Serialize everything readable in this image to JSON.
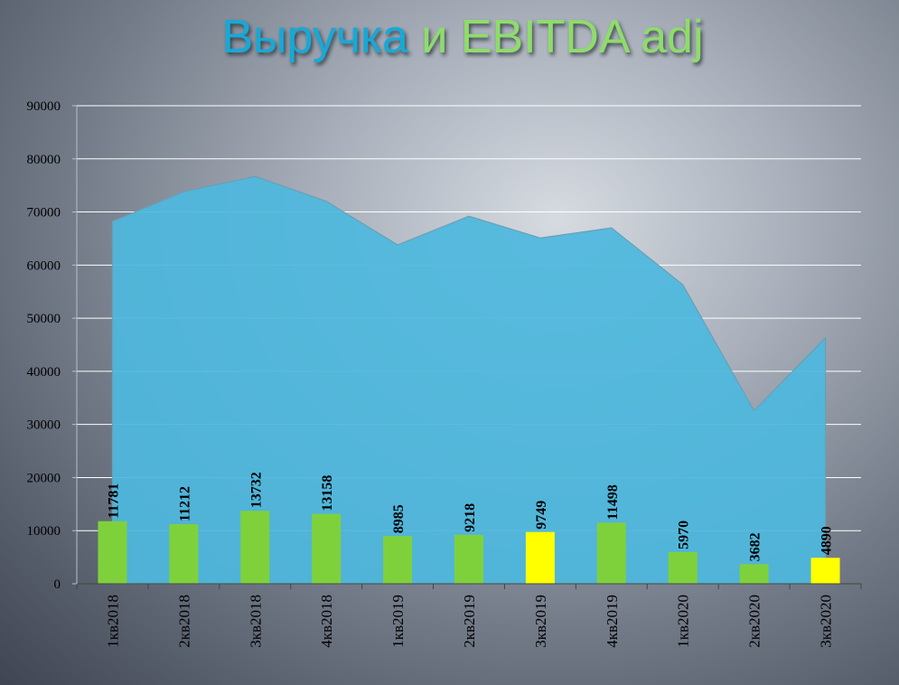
{
  "title": {
    "part1": "Выручка ",
    "part2": "и EBITDA adj"
  },
  "colors": {
    "title_part1": "#12a9d8",
    "title_part2": "#8fdc6a",
    "area_fill": "#4db8de",
    "bar_green": "#7fd13b",
    "bar_yellow": "#ffff00",
    "grid": "#ffffff",
    "axis": "#444444"
  },
  "chart_data": {
    "type": "bar",
    "categories": [
      "1кв2018",
      "2кв2018",
      "3кв2018",
      "4кв2018",
      "1кв2019",
      "2кв2019",
      "3кв2019",
      "4кв2019",
      "1кв2020",
      "2кв2020",
      "3кв2020"
    ],
    "series": [
      {
        "chart_type": "area",
        "values": [
          68200,
          73800,
          76700,
          72000,
          63800,
          69200,
          65100,
          67000,
          56300,
          32600,
          46300
        ],
        "color": "#4db8de"
      },
      {
        "chart_type": "bar",
        "values": [
          11781,
          11212,
          13732,
          13158,
          8985,
          9218,
          9749,
          11498,
          5970,
          3682,
          4890
        ],
        "colors": [
          "#7fd13b",
          "#7fd13b",
          "#7fd13b",
          "#7fd13b",
          "#7fd13b",
          "#7fd13b",
          "#ffff00",
          "#7fd13b",
          "#7fd13b",
          "#7fd13b",
          "#ffff00"
        ],
        "data_labels": [
          "11781",
          "11212",
          "13732",
          "13158",
          "8985",
          "9218",
          "9749",
          "11498",
          "5970",
          "3682",
          "4890"
        ]
      }
    ],
    "ylim": [
      0,
      90000
    ],
    "yticks": [
      0,
      10000,
      20000,
      30000,
      40000,
      50000,
      60000,
      70000,
      80000,
      90000
    ],
    "ytick_labels": [
      "0",
      "10000",
      "20000",
      "30000",
      "40000",
      "50000",
      "60000",
      "70000",
      "80000",
      "90000"
    ],
    "grid": true,
    "legend": "none"
  }
}
